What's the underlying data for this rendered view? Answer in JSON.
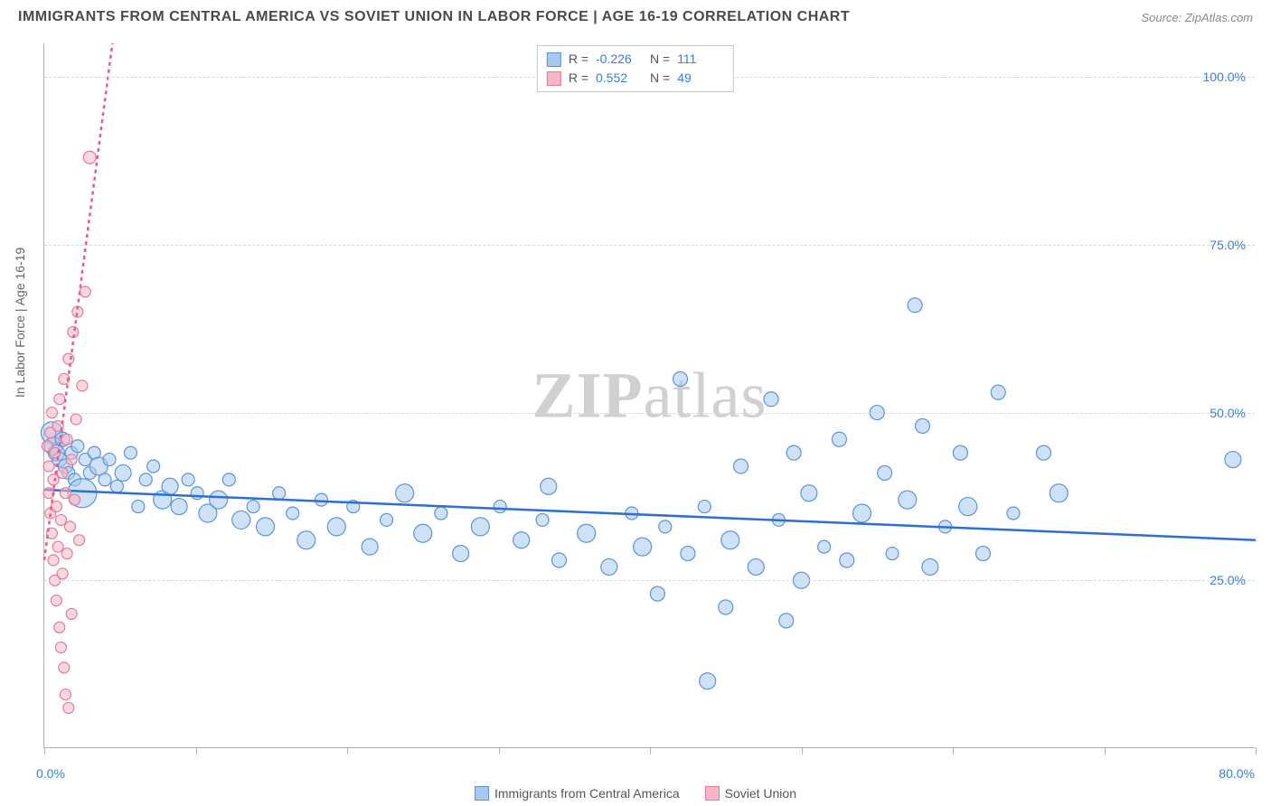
{
  "header": {
    "title": "IMMIGRANTS FROM CENTRAL AMERICA VS SOVIET UNION IN LABOR FORCE | AGE 16-19 CORRELATION CHART",
    "source": "Source: ZipAtlas.com"
  },
  "watermark": {
    "a": "ZIP",
    "b": "atlas"
  },
  "chart": {
    "type": "scatter",
    "ylabel": "In Labor Force | Age 16-19",
    "xlim": [
      0,
      80
    ],
    "ylim": [
      0,
      105
    ],
    "xticks_minor": [
      0,
      10,
      20,
      30,
      40,
      50,
      60,
      70,
      80
    ],
    "yticks": [
      25,
      50,
      75,
      100
    ],
    "ytick_labels": [
      "25.0%",
      "50.0%",
      "75.0%",
      "100.0%"
    ],
    "xmin_label": "0.0%",
    "xmax_label": "80.0%",
    "grid_color": "#d8d8d8",
    "background_color": "#ffffff",
    "series": [
      {
        "name": "Immigrants from Central America",
        "color_fill": "#a8c8ef",
        "color_stroke": "#5b95d6",
        "trend_color": "#2e6fd0",
        "trend_dash": "none",
        "trend": {
          "x1": 0,
          "y1": 38.5,
          "x2": 80,
          "y2": 31
        },
        "R": "-0.226",
        "N": "111",
        "points": [
          {
            "x": 0.5,
            "y": 47,
            "r": 12
          },
          {
            "x": 0.6,
            "y": 45,
            "r": 10
          },
          {
            "x": 0.8,
            "y": 44,
            "r": 9
          },
          {
            "x": 1.0,
            "y": 43,
            "r": 8
          },
          {
            "x": 1.2,
            "y": 46,
            "r": 8
          },
          {
            "x": 1.4,
            "y": 42,
            "r": 8
          },
          {
            "x": 1.6,
            "y": 41,
            "r": 7
          },
          {
            "x": 1.8,
            "y": 44,
            "r": 7
          },
          {
            "x": 2.0,
            "y": 40,
            "r": 7
          },
          {
            "x": 2.2,
            "y": 45,
            "r": 7
          },
          {
            "x": 2.5,
            "y": 38,
            "r": 16
          },
          {
            "x": 2.7,
            "y": 43,
            "r": 7
          },
          {
            "x": 3.0,
            "y": 41,
            "r": 7
          },
          {
            "x": 3.3,
            "y": 44,
            "r": 7
          },
          {
            "x": 3.6,
            "y": 42,
            "r": 10
          },
          {
            "x": 4.0,
            "y": 40,
            "r": 7
          },
          {
            "x": 4.3,
            "y": 43,
            "r": 7
          },
          {
            "x": 4.8,
            "y": 39,
            "r": 7
          },
          {
            "x": 5.2,
            "y": 41,
            "r": 9
          },
          {
            "x": 5.7,
            "y": 44,
            "r": 7
          },
          {
            "x": 6.2,
            "y": 36,
            "r": 7
          },
          {
            "x": 6.7,
            "y": 40,
            "r": 7
          },
          {
            "x": 7.2,
            "y": 42,
            "r": 7
          },
          {
            "x": 7.8,
            "y": 37,
            "r": 10
          },
          {
            "x": 8.3,
            "y": 39,
            "r": 9
          },
          {
            "x": 8.9,
            "y": 36,
            "r": 9
          },
          {
            "x": 9.5,
            "y": 40,
            "r": 7
          },
          {
            "x": 10.1,
            "y": 38,
            "r": 7
          },
          {
            "x": 10.8,
            "y": 35,
            "r": 10
          },
          {
            "x": 11.5,
            "y": 37,
            "r": 10
          },
          {
            "x": 12.2,
            "y": 40,
            "r": 7
          },
          {
            "x": 13.0,
            "y": 34,
            "r": 10
          },
          {
            "x": 13.8,
            "y": 36,
            "r": 7
          },
          {
            "x": 14.6,
            "y": 33,
            "r": 10
          },
          {
            "x": 15.5,
            "y": 38,
            "r": 7
          },
          {
            "x": 16.4,
            "y": 35,
            "r": 7
          },
          {
            "x": 17.3,
            "y": 31,
            "r": 10
          },
          {
            "x": 18.3,
            "y": 37,
            "r": 7
          },
          {
            "x": 19.3,
            "y": 33,
            "r": 10
          },
          {
            "x": 20.4,
            "y": 36,
            "r": 7
          },
          {
            "x": 21.5,
            "y": 30,
            "r": 9
          },
          {
            "x": 22.6,
            "y": 34,
            "r": 7
          },
          {
            "x": 23.8,
            "y": 38,
            "r": 10
          },
          {
            "x": 25.0,
            "y": 32,
            "r": 10
          },
          {
            "x": 26.2,
            "y": 35,
            "r": 7
          },
          {
            "x": 27.5,
            "y": 29,
            "r": 9
          },
          {
            "x": 28.8,
            "y": 33,
            "r": 10
          },
          {
            "x": 30.1,
            "y": 36,
            "r": 7
          },
          {
            "x": 31.5,
            "y": 31,
            "r": 9
          },
          {
            "x": 32.9,
            "y": 34,
            "r": 7
          },
          {
            "x": 33.3,
            "y": 39,
            "r": 9
          },
          {
            "x": 34.0,
            "y": 28,
            "r": 8
          },
          {
            "x": 35.8,
            "y": 32,
            "r": 10
          },
          {
            "x": 37.3,
            "y": 27,
            "r": 9
          },
          {
            "x": 38.8,
            "y": 35,
            "r": 7
          },
          {
            "x": 39.5,
            "y": 30,
            "r": 10
          },
          {
            "x": 40.5,
            "y": 23,
            "r": 8
          },
          {
            "x": 41.0,
            "y": 33,
            "r": 7
          },
          {
            "x": 42.0,
            "y": 55,
            "r": 8
          },
          {
            "x": 42.5,
            "y": 29,
            "r": 8
          },
          {
            "x": 43.6,
            "y": 36,
            "r": 7
          },
          {
            "x": 43.8,
            "y": 10,
            "r": 9
          },
          {
            "x": 45.0,
            "y": 21,
            "r": 8
          },
          {
            "x": 45.3,
            "y": 31,
            "r": 10
          },
          {
            "x": 46.0,
            "y": 42,
            "r": 8
          },
          {
            "x": 47.0,
            "y": 27,
            "r": 9
          },
          {
            "x": 48.0,
            "y": 52,
            "r": 8
          },
          {
            "x": 48.5,
            "y": 34,
            "r": 7
          },
          {
            "x": 49.0,
            "y": 19,
            "r": 8
          },
          {
            "x": 49.5,
            "y": 44,
            "r": 8
          },
          {
            "x": 50.0,
            "y": 25,
            "r": 9
          },
          {
            "x": 50.5,
            "y": 38,
            "r": 9
          },
          {
            "x": 51.5,
            "y": 30,
            "r": 7
          },
          {
            "x": 52.5,
            "y": 46,
            "r": 8
          },
          {
            "x": 53.0,
            "y": 28,
            "r": 8
          },
          {
            "x": 54.0,
            "y": 35,
            "r": 10
          },
          {
            "x": 55.0,
            "y": 50,
            "r": 8
          },
          {
            "x": 55.5,
            "y": 41,
            "r": 8
          },
          {
            "x": 56.0,
            "y": 29,
            "r": 7
          },
          {
            "x": 57.0,
            "y": 37,
            "r": 10
          },
          {
            "x": 57.5,
            "y": 66,
            "r": 8
          },
          {
            "x": 58.0,
            "y": 48,
            "r": 8
          },
          {
            "x": 58.5,
            "y": 27,
            "r": 9
          },
          {
            "x": 59.5,
            "y": 33,
            "r": 7
          },
          {
            "x": 60.5,
            "y": 44,
            "r": 8
          },
          {
            "x": 61.0,
            "y": 36,
            "r": 10
          },
          {
            "x": 62.0,
            "y": 29,
            "r": 8
          },
          {
            "x": 63.0,
            "y": 53,
            "r": 8
          },
          {
            "x": 64.0,
            "y": 35,
            "r": 7
          },
          {
            "x": 66.0,
            "y": 44,
            "r": 8
          },
          {
            "x": 67.0,
            "y": 38,
            "r": 10
          },
          {
            "x": 78.5,
            "y": 43,
            "r": 9
          }
        ]
      },
      {
        "name": "Soviet Union",
        "color_fill": "#f6b8c7",
        "color_stroke": "#e77a98",
        "trend_color": "#e85a88",
        "trend_dash": "4,4",
        "trend": {
          "x1": 0,
          "y1": 28,
          "x2": 4.5,
          "y2": 105
        },
        "R": "0.552",
        "N": "49",
        "points": [
          {
            "x": 0.2,
            "y": 45,
            "r": 6
          },
          {
            "x": 0.3,
            "y": 42,
            "r": 6
          },
          {
            "x": 0.3,
            "y": 38,
            "r": 6
          },
          {
            "x": 0.4,
            "y": 47,
            "r": 6
          },
          {
            "x": 0.4,
            "y": 35,
            "r": 6
          },
          {
            "x": 0.5,
            "y": 50,
            "r": 6
          },
          {
            "x": 0.5,
            "y": 32,
            "r": 6
          },
          {
            "x": 0.6,
            "y": 40,
            "r": 6
          },
          {
            "x": 0.6,
            "y": 28,
            "r": 6
          },
          {
            "x": 0.7,
            "y": 44,
            "r": 6
          },
          {
            "x": 0.7,
            "y": 25,
            "r": 6
          },
          {
            "x": 0.8,
            "y": 36,
            "r": 6
          },
          {
            "x": 0.8,
            "y": 22,
            "r": 6
          },
          {
            "x": 0.9,
            "y": 48,
            "r": 6
          },
          {
            "x": 0.9,
            "y": 30,
            "r": 6
          },
          {
            "x": 1.0,
            "y": 18,
            "r": 6
          },
          {
            "x": 1.0,
            "y": 52,
            "r": 6
          },
          {
            "x": 1.1,
            "y": 34,
            "r": 6
          },
          {
            "x": 1.1,
            "y": 15,
            "r": 6
          },
          {
            "x": 1.2,
            "y": 41,
            "r": 6
          },
          {
            "x": 1.2,
            "y": 26,
            "r": 6
          },
          {
            "x": 1.3,
            "y": 12,
            "r": 6
          },
          {
            "x": 1.3,
            "y": 55,
            "r": 6
          },
          {
            "x": 1.4,
            "y": 38,
            "r": 6
          },
          {
            "x": 1.4,
            "y": 8,
            "r": 6
          },
          {
            "x": 1.5,
            "y": 46,
            "r": 6
          },
          {
            "x": 1.5,
            "y": 29,
            "r": 6
          },
          {
            "x": 1.6,
            "y": 6,
            "r": 6
          },
          {
            "x": 1.6,
            "y": 58,
            "r": 6
          },
          {
            "x": 1.7,
            "y": 33,
            "r": 6
          },
          {
            "x": 1.8,
            "y": 43,
            "r": 6
          },
          {
            "x": 1.8,
            "y": 20,
            "r": 6
          },
          {
            "x": 1.9,
            "y": 62,
            "r": 6
          },
          {
            "x": 2.0,
            "y": 37,
            "r": 6
          },
          {
            "x": 2.1,
            "y": 49,
            "r": 6
          },
          {
            "x": 2.2,
            "y": 65,
            "r": 6
          },
          {
            "x": 2.3,
            "y": 31,
            "r": 6
          },
          {
            "x": 2.5,
            "y": 54,
            "r": 6
          },
          {
            "x": 2.7,
            "y": 68,
            "r": 6
          },
          {
            "x": 3.0,
            "y": 88,
            "r": 7
          }
        ]
      }
    ]
  },
  "stats_box": {
    "rows": [
      {
        "swatch_fill": "#a8c8ef",
        "swatch_stroke": "#5b95d6",
        "R_lbl": "R =",
        "R": "-0.226",
        "N_lbl": "N =",
        "N": "111"
      },
      {
        "swatch_fill": "#f6b8c7",
        "swatch_stroke": "#e77a98",
        "R_lbl": "R =",
        "R": "0.552",
        "N_lbl": "N =",
        "N": "49"
      }
    ]
  },
  "legend": {
    "items": [
      {
        "swatch_fill": "#a8c8ef",
        "swatch_stroke": "#5b95d6",
        "label": "Immigrants from Central America"
      },
      {
        "swatch_fill": "#f6b8c7",
        "swatch_stroke": "#e77a98",
        "label": "Soviet Union"
      }
    ]
  }
}
